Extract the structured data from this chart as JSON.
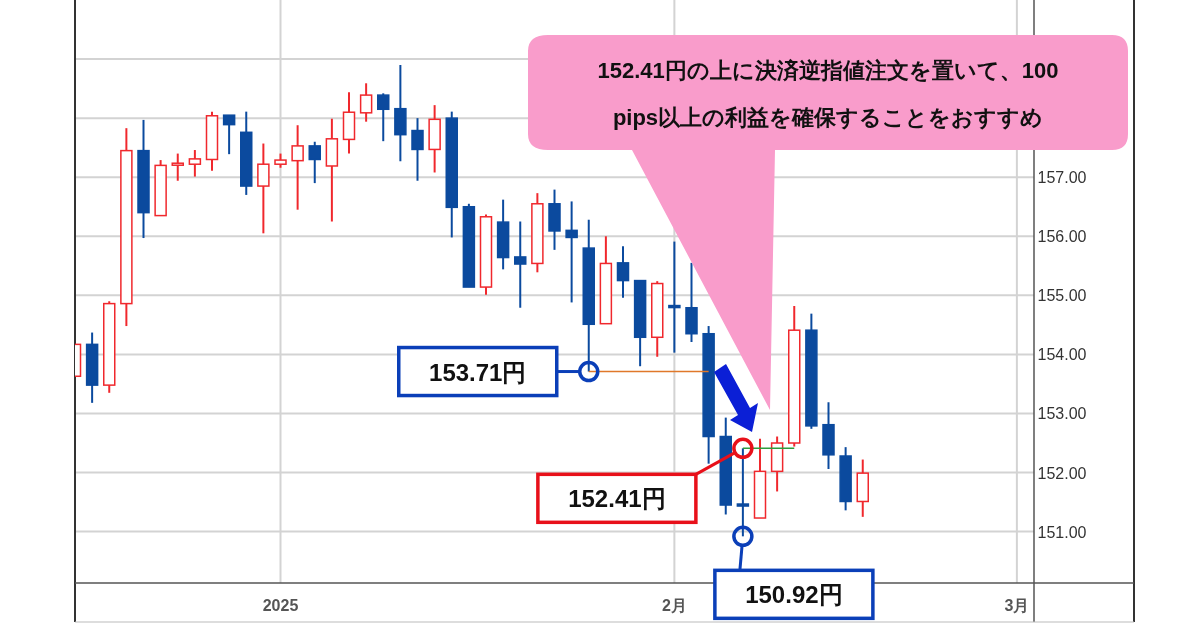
{
  "chart_data": {
    "type": "candlestick",
    "categories": [
      null,
      null,
      null,
      null,
      null,
      null,
      null,
      null,
      null,
      null,
      null,
      null,
      "2025",
      null,
      null,
      null,
      null,
      null,
      null,
      null,
      null,
      null,
      null,
      null,
      null,
      null,
      null,
      null,
      null,
      null,
      null,
      null,
      null,
      null,
      null,
      "2月",
      null,
      null,
      null,
      null,
      null,
      null,
      null,
      null,
      null,
      null,
      null,
      null,
      null,
      null,
      null,
      null,
      null,
      null,
      null,
      "3月",
      null
    ],
    "ohlc": [
      [
        153.63,
        154.17,
        153.63,
        154.17
      ],
      [
        154.17,
        154.37,
        153.18,
        153.48
      ],
      [
        153.48,
        154.9,
        153.35,
        154.86
      ],
      [
        154.86,
        157.83,
        154.48,
        157.45
      ],
      [
        157.45,
        157.97,
        155.97,
        156.4
      ],
      [
        156.35,
        157.29,
        156.35,
        157.2
      ],
      [
        157.19,
        157.4,
        156.94,
        157.22
      ],
      [
        157.22,
        157.46,
        157.01,
        157.31
      ],
      [
        157.3,
        158.11,
        157.11,
        158.04
      ],
      [
        158.05,
        158.05,
        157.39,
        157.89
      ],
      [
        157.76,
        158.11,
        156.7,
        156.85
      ],
      [
        156.85,
        157.57,
        156.05,
        157.22
      ],
      [
        157.22,
        157.4,
        157.16,
        157.29
      ],
      [
        157.28,
        157.88,
        156.45,
        157.53
      ],
      [
        157.53,
        157.6,
        156.9,
        157.3
      ],
      [
        157.19,
        157.99,
        156.25,
        157.65
      ],
      [
        157.64,
        158.44,
        157.4,
        158.1
      ],
      [
        158.09,
        158.59,
        157.94,
        158.39
      ],
      [
        158.39,
        158.42,
        157.61,
        158.15
      ],
      [
        158.16,
        158.9,
        157.27,
        157.72
      ],
      [
        157.79,
        158.0,
        156.94,
        157.47
      ],
      [
        157.47,
        158.22,
        157.08,
        157.98
      ],
      [
        158.0,
        158.11,
        155.98,
        156.49
      ],
      [
        156.5,
        156.55,
        155.14,
        155.14
      ],
      [
        155.14,
        156.37,
        155.01,
        156.33
      ],
      [
        156.24,
        156.62,
        155.44,
        155.64
      ],
      [
        155.65,
        156.25,
        154.79,
        155.53
      ],
      [
        155.54,
        156.73,
        155.39,
        156.55
      ],
      [
        156.55,
        156.79,
        155.77,
        156.09
      ],
      [
        156.1,
        156.59,
        154.88,
        155.98
      ],
      [
        155.8,
        156.28,
        153.71,
        154.51
      ],
      [
        154.52,
        156.0,
        154.52,
        155.54
      ],
      [
        155.55,
        155.83,
        154.96,
        155.25
      ],
      [
        155.25,
        155.25,
        153.8,
        154.29
      ],
      [
        154.29,
        155.24,
        153.96,
        155.2
      ],
      [
        154.81,
        155.91,
        154.03,
        154.8
      ],
      [
        154.79,
        155.55,
        154.21,
        154.35
      ],
      [
        154.35,
        154.48,
        152.15,
        152.61
      ],
      [
        152.61,
        152.93,
        151.29,
        151.45
      ],
      [
        151.45,
        152.41,
        150.92,
        151.44
      ],
      [
        151.23,
        152.57,
        151.23,
        152.02
      ],
      [
        152.02,
        152.61,
        151.68,
        152.5
      ],
      [
        152.5,
        154.82,
        152.44,
        154.41
      ],
      [
        154.41,
        154.69,
        152.74,
        152.79
      ],
      [
        152.81,
        153.19,
        152.06,
        152.3
      ],
      [
        152.28,
        152.43,
        151.36,
        151.51
      ],
      [
        151.51,
        152.22,
        151.25,
        151.99
      ],
      null,
      null,
      null,
      null,
      null,
      null,
      null,
      null,
      null,
      null
    ],
    "colors": [
      "#f0282d",
      "#0b4a9e",
      "#f0282d",
      "#f0282d",
      "#0b4a9e",
      "#f0282d",
      "#f0282d",
      "#f0282d",
      "#f0282d",
      "#0b4a9e",
      "#0b4a9e",
      "#f0282d",
      "#f0282d",
      "#f0282d",
      "#0b4a9e",
      "#f0282d",
      "#f0282d",
      "#f0282d",
      "#0b4a9e",
      "#0b4a9e",
      "#0b4a9e",
      "#f0282d",
      "#0b4a9e",
      "#0b4a9e",
      "#f0282d",
      "#0b4a9e",
      "#0b4a9e",
      "#f0282d",
      "#0b4a9e",
      "#0b4a9e",
      "#0b4a9e",
      "#f0282d",
      "#0b4a9e",
      "#0b4a9e",
      "#f0282d",
      "#0b4a9e",
      "#0b4a9e",
      "#0b4a9e",
      "#0b4a9e",
      "#0b4a9e",
      "#f0282d",
      "#f0282d",
      "#f0282d",
      "#0b4a9e",
      "#0b4a9e",
      "#0b4a9e",
      "#f0282d",
      null,
      null,
      null,
      null,
      null,
      null,
      null,
      null,
      null,
      null
    ],
    "series": [
      {
        "type": "line",
        "color": "#e0782a",
        "values": [
          null,
          null,
          null,
          null,
          null,
          null,
          null,
          null,
          null,
          null,
          null,
          null,
          null,
          null,
          null,
          null,
          null,
          null,
          null,
          null,
          null,
          null,
          null,
          null,
          null,
          null,
          null,
          null,
          null,
          null,
          153.71,
          153.71,
          153.71,
          153.71,
          153.71,
          153.71,
          153.71,
          153.71,
          null,
          null,
          null,
          null,
          null,
          null,
          null,
          null,
          null,
          null,
          null,
          null,
          null,
          null,
          null,
          null,
          null,
          null,
          null
        ]
      },
      {
        "type": "line",
        "color": "#2e9e3e",
        "values": [
          null,
          null,
          null,
          null,
          null,
          null,
          null,
          null,
          null,
          null,
          null,
          null,
          null,
          null,
          null,
          null,
          null,
          null,
          null,
          null,
          null,
          null,
          null,
          null,
          null,
          null,
          null,
          null,
          null,
          null,
          null,
          null,
          null,
          null,
          null,
          null,
          null,
          null,
          null,
          152.41,
          152.41,
          152.41,
          152.41,
          null,
          null,
          null,
          null,
          null,
          null,
          null,
          null,
          null,
          null,
          null,
          null,
          null,
          null
        ]
      },
      {
        "type": "scatter",
        "marker": "circle",
        "color": "#0b3fb8",
        "values": [
          null,
          null,
          null,
          null,
          null,
          null,
          null,
          null,
          null,
          null,
          null,
          null,
          null,
          null,
          null,
          null,
          null,
          null,
          null,
          null,
          null,
          null,
          null,
          null,
          null,
          null,
          null,
          null,
          null,
          null,
          153.71,
          null,
          null,
          null,
          null,
          null,
          null,
          null,
          null,
          150.92,
          null,
          null,
          null,
          null,
          null,
          null,
          null,
          null,
          null,
          null,
          null,
          null,
          null,
          null,
          null,
          null,
          null
        ]
      },
      {
        "type": "scatter",
        "marker": "circle",
        "color": "#e8101a",
        "values": [
          null,
          null,
          null,
          null,
          null,
          null,
          null,
          null,
          null,
          null,
          null,
          null,
          null,
          null,
          null,
          null,
          null,
          null,
          null,
          null,
          null,
          null,
          null,
          null,
          null,
          null,
          null,
          null,
          null,
          null,
          null,
          null,
          null,
          null,
          null,
          null,
          null,
          null,
          null,
          152.41,
          null,
          null,
          null,
          null,
          null,
          null,
          null,
          null,
          null,
          null,
          null,
          null,
          null,
          null,
          null,
          null,
          null
        ]
      }
    ],
    "annotations": [
      "152.41円の上に決済逆指値注文を置いて、100\npips以上の利益を確保することをおすすめ",
      "153.71円",
      "152.41円",
      "150.92円"
    ],
    "ylim": [
      150.13,
      160
    ],
    "yticks": [
      {
        "value": 151,
        "label": "151.00"
      },
      {
        "value": 152,
        "label": "152.00"
      },
      {
        "value": 153,
        "label": "153.00"
      },
      {
        "value": 154,
        "label": "154.00"
      },
      {
        "value": 155,
        "label": "155.00"
      },
      {
        "value": 156,
        "label": "156.00"
      },
      {
        "value": 157,
        "label": "157.00"
      },
      {
        "value": 158,
        "label": null
      },
      {
        "value": 159,
        "label": null
      }
    ],
    "grid": true
  }
}
